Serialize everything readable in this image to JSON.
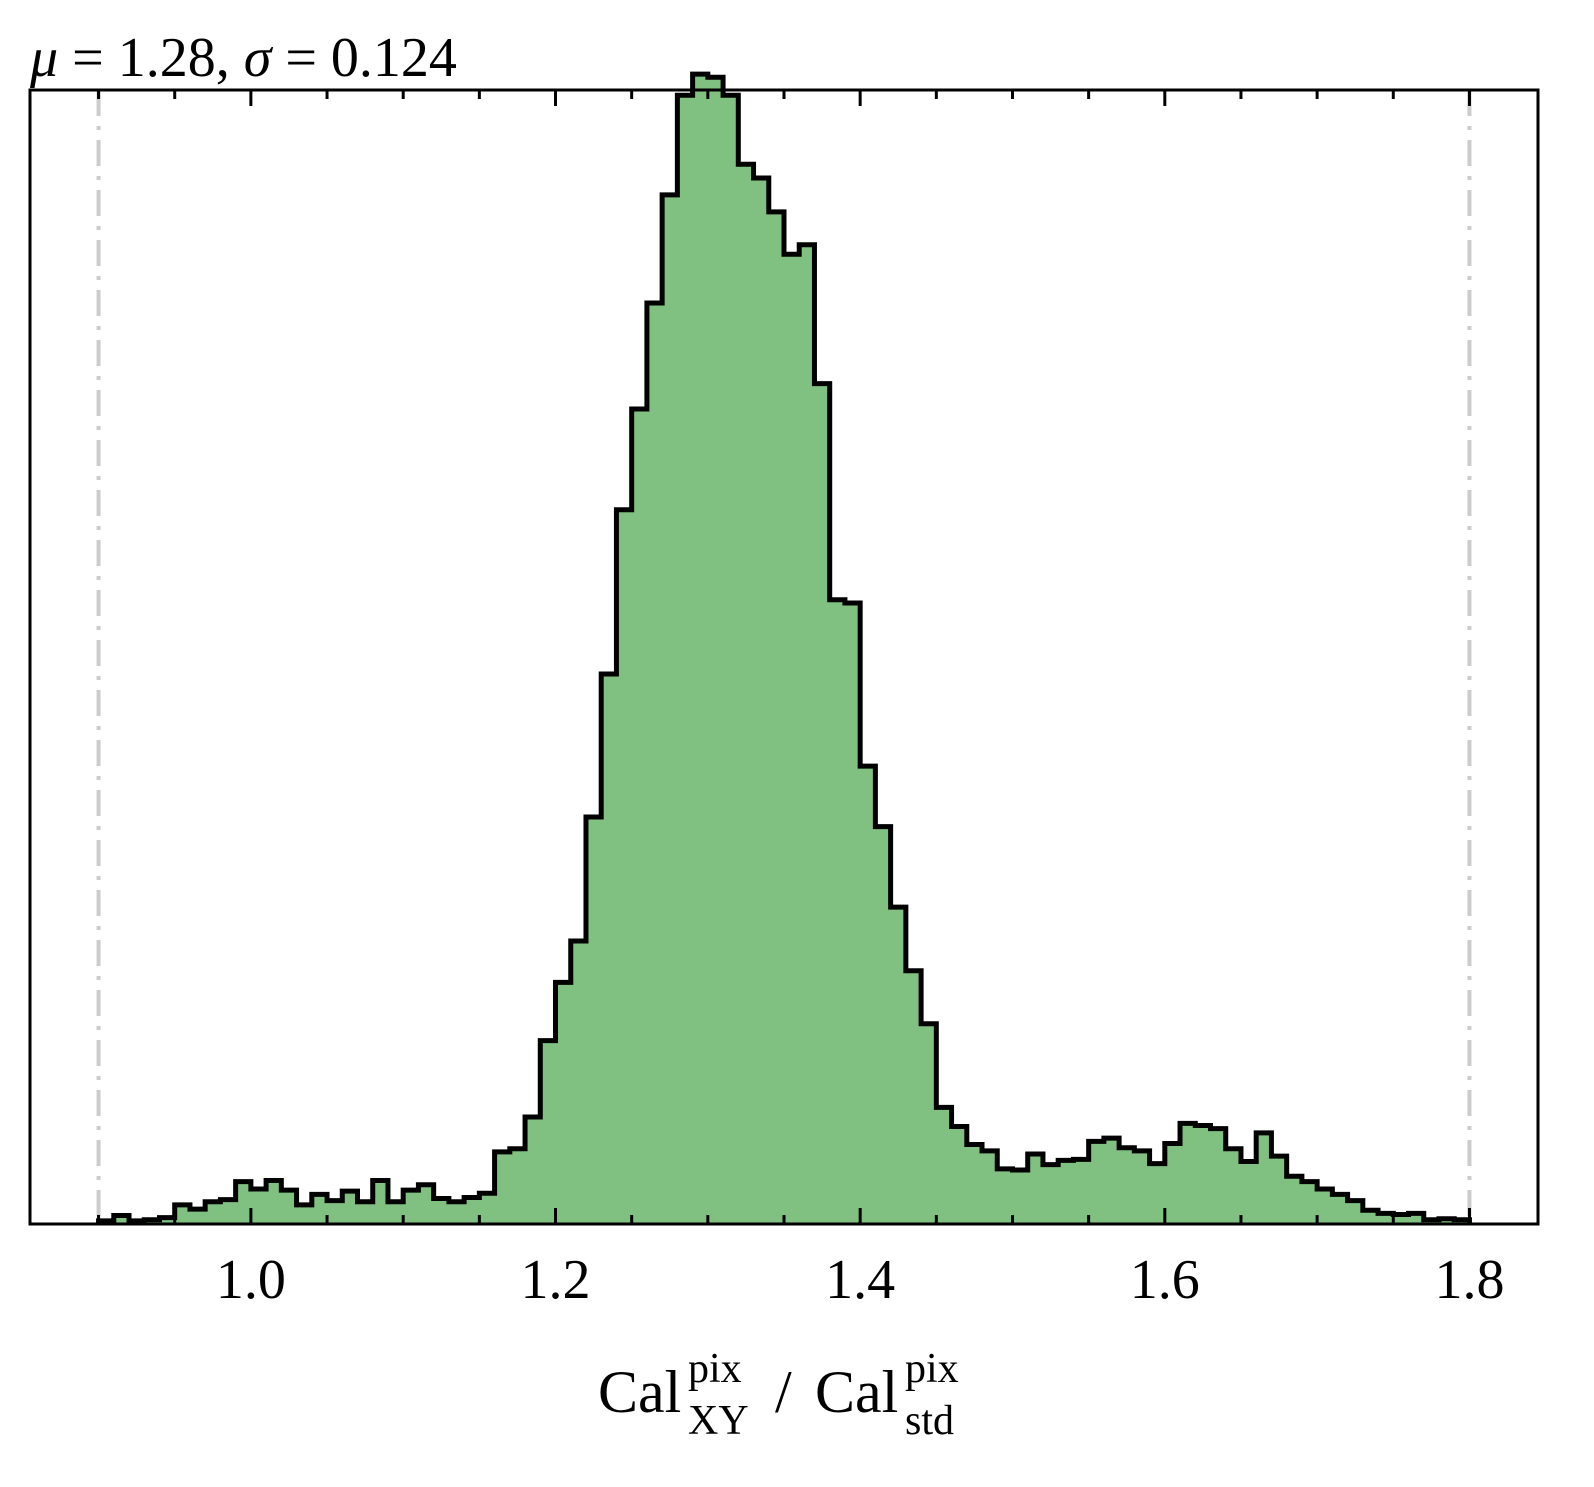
{
  "chart_data": {
    "type": "histogram",
    "title": "μ = 1.28, σ = 0.124",
    "title_parts": {
      "mu": "μ",
      "mu_eq": " = 1.28, ",
      "sigma": "σ",
      "sigma_eq": " = 0.124"
    },
    "xlabel": "Cal_XY^pix / Cal_std^pix",
    "xlabel_parts": {
      "base1": "Cal",
      "sup1": "pix",
      "sub1": "XY",
      "sep": " / ",
      "base2": "Cal",
      "sup2": "pix",
      "sub2": "std"
    },
    "ylabel": "",
    "xlim": [
      0.855,
      1.845
    ],
    "ylim": [
      0,
      1.07
    ],
    "x_ticks": [
      1.0,
      1.2,
      1.4,
      1.6,
      1.8
    ],
    "x_tick_labels": [
      "1.0",
      "1.2",
      "1.4",
      "1.6",
      "1.8"
    ],
    "x_minor_step": 0.05,
    "y_ticks_shown": false,
    "grid": false,
    "bin_edges_range": [
      0.9,
      1.8
    ],
    "bin_count": 90,
    "values": [
      0.003,
      0.008,
      0.003,
      0.004,
      0.006,
      0.018,
      0.014,
      0.021,
      0.023,
      0.04,
      0.033,
      0.041,
      0.032,
      0.018,
      0.028,
      0.022,
      0.031,
      0.021,
      0.041,
      0.021,
      0.032,
      0.037,
      0.024,
      0.021,
      0.025,
      0.029,
      0.068,
      0.071,
      0.101,
      0.173,
      0.228,
      0.267,
      0.384,
      0.519,
      0.674,
      0.769,
      0.869,
      0.971,
      1.065,
      1.085,
      1.082,
      1.065,
      1.0,
      0.987,
      0.955,
      0.915,
      0.924,
      0.793,
      0.589,
      0.586,
      0.432,
      0.375,
      0.299,
      0.239,
      0.189,
      0.11,
      0.092,
      0.075,
      0.069,
      0.052,
      0.051,
      0.066,
      0.056,
      0.06,
      0.061,
      0.078,
      0.081,
      0.072,
      0.069,
      0.057,
      0.076,
      0.095,
      0.093,
      0.09,
      0.071,
      0.059,
      0.086,
      0.064,
      0.045,
      0.04,
      0.033,
      0.028,
      0.022,
      0.013,
      0.01,
      0.009,
      0.01,
      0.004,
      0.005,
      0.004
    ],
    "bar_fill": "#80c080",
    "bar_edge": "#000000",
    "reference_lines": {
      "x": [
        0.9,
        1.8
      ],
      "color": "#cccccc",
      "style": "dash-dot"
    }
  }
}
